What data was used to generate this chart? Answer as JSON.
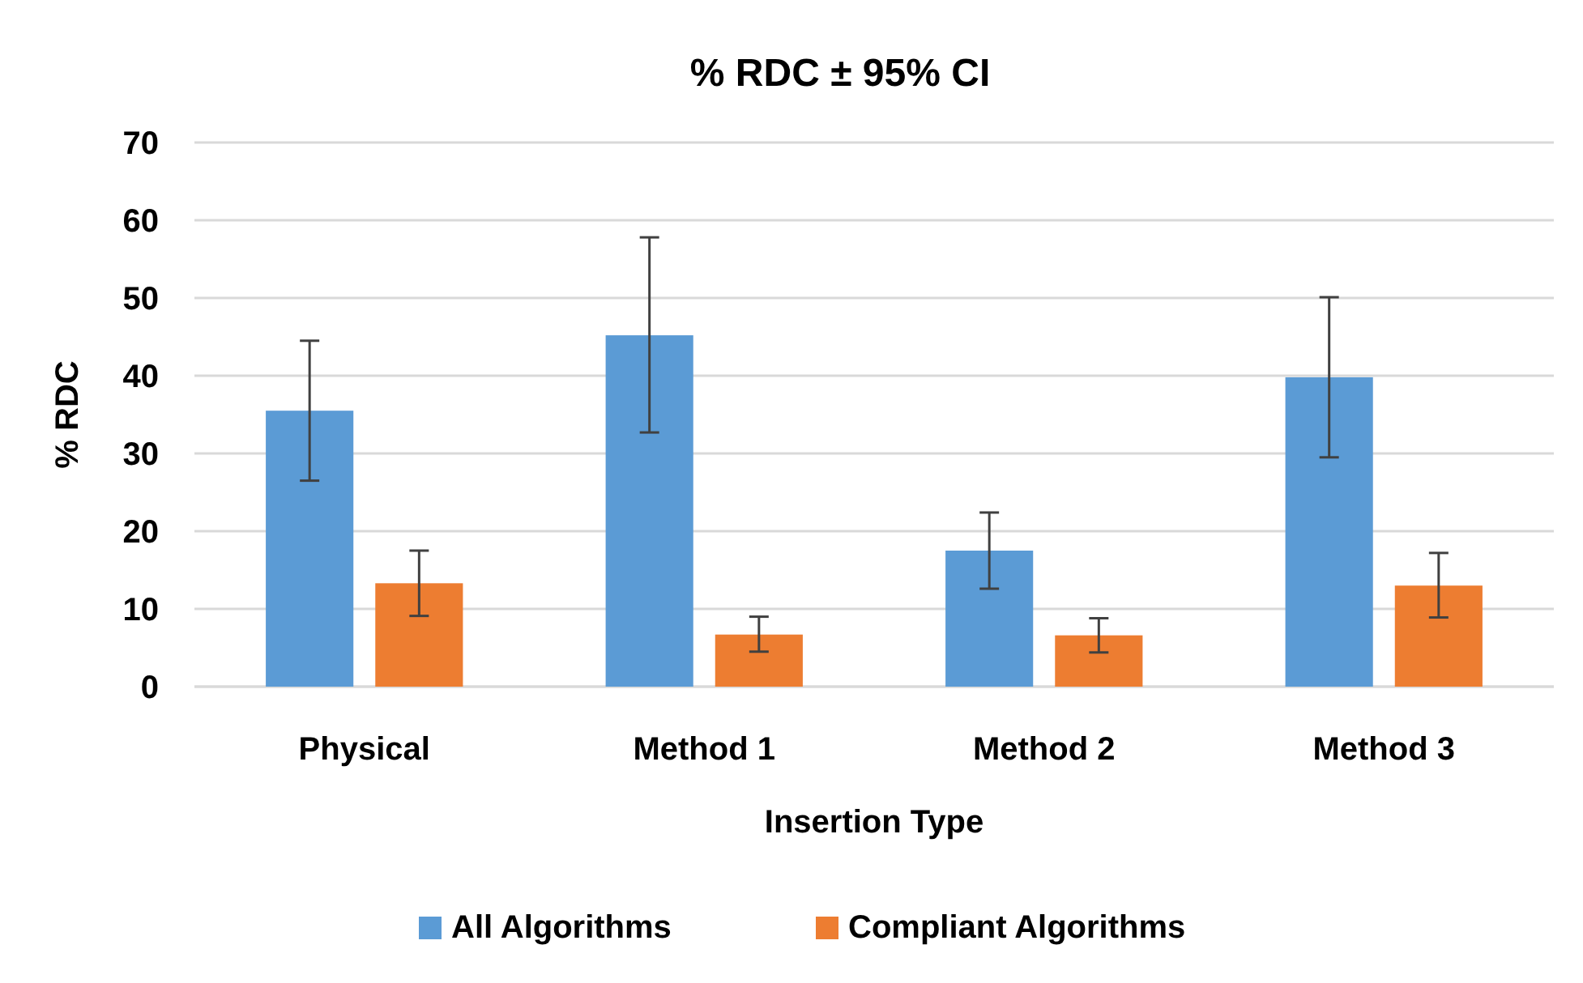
{
  "chart_data": {
    "type": "bar",
    "title": "% RDC ± 95% CI",
    "xlabel": "Insertion Type",
    "ylabel": "% RDC",
    "categories": [
      "Physical",
      "Method 1",
      "Method 2",
      "Method 3"
    ],
    "series": [
      {
        "name": "All Algorithms",
        "color": "#5b9bd5",
        "values": [
          35.5,
          45.2,
          17.5,
          39.8
        ],
        "errors": [
          [
            26.5,
            44.5
          ],
          [
            32.7,
            57.8
          ],
          [
            12.6,
            22.4
          ],
          [
            29.5,
            50.1
          ]
        ]
      },
      {
        "name": "Compliant Algorithms",
        "color": "#ed7d31",
        "values": [
          13.3,
          6.7,
          6.6,
          13.0
        ],
        "errors": [
          [
            9.1,
            17.5
          ],
          [
            4.5,
            9.0
          ],
          [
            4.4,
            8.8
          ],
          [
            8.9,
            17.2
          ]
        ]
      }
    ],
    "ylim": [
      0,
      70
    ],
    "yticks": [
      0,
      10,
      20,
      30,
      40,
      50,
      60,
      70
    ],
    "grid": "y",
    "legend": "bottom"
  }
}
